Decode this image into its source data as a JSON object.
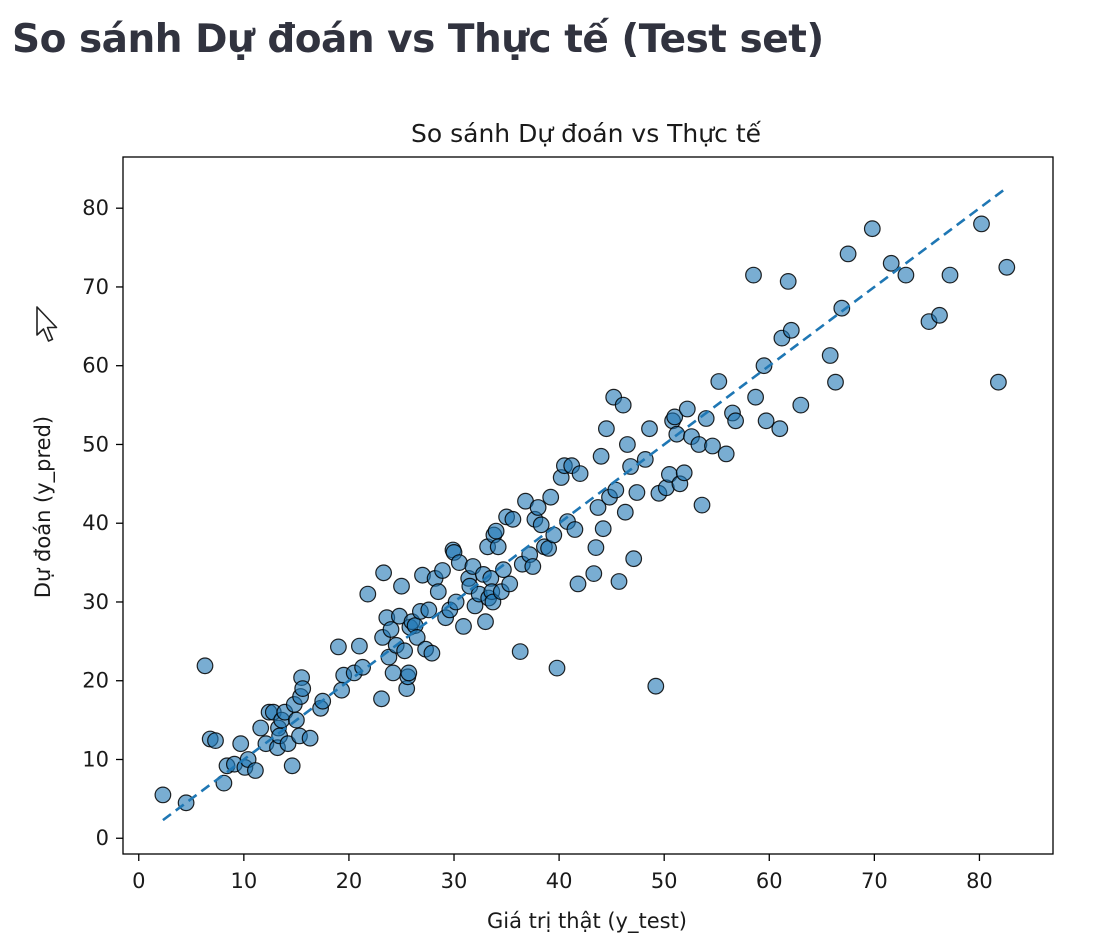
{
  "page": {
    "heading": "So sánh Dự đoán vs Thực tế (Test set)"
  },
  "icons": {
    "cursor": "mouse-pointer-icon"
  },
  "colors": {
    "point_fill": "#1f77b4",
    "point_stroke": "#000000",
    "reference_line": "#1f77b4"
  },
  "chart_data": {
    "type": "scatter",
    "title": "So sánh Dự đoán vs Thực tế",
    "xlabel": "Giá trị thật (y_test)",
    "ylabel": "Dự đoán (y_pred)",
    "xlim": [
      -1.5,
      87
    ],
    "ylim": [
      -2,
      86.5
    ],
    "xticks": [
      0,
      10,
      20,
      30,
      40,
      50,
      60,
      70,
      80
    ],
    "yticks": [
      0,
      10,
      20,
      30,
      40,
      50,
      60,
      70,
      80
    ],
    "grid": false,
    "reference_line": {
      "style": "dashed",
      "from": [
        2.3,
        2.3
      ],
      "to": [
        82.5,
        82.5
      ]
    },
    "points": [
      [
        2.3,
        5.5
      ],
      [
        4.5,
        4.5
      ],
      [
        6.3,
        21.9
      ],
      [
        6.8,
        12.6
      ],
      [
        7.3,
        12.4
      ],
      [
        8.1,
        7
      ],
      [
        8.4,
        9.2
      ],
      [
        9.1,
        9.4
      ],
      [
        9.7,
        12
      ],
      [
        10.1,
        9
      ],
      [
        10.4,
        10
      ],
      [
        11.1,
        8.6
      ],
      [
        11.6,
        14
      ],
      [
        12.1,
        12
      ],
      [
        12.4,
        16
      ],
      [
        12.8,
        16
      ],
      [
        13.2,
        11.5
      ],
      [
        13.3,
        14
      ],
      [
        13.4,
        13
      ],
      [
        13.6,
        15
      ],
      [
        13.9,
        16
      ],
      [
        14.2,
        12
      ],
      [
        14.6,
        9.2
      ],
      [
        14.8,
        17
      ],
      [
        15,
        15
      ],
      [
        15.3,
        13
      ],
      [
        15.4,
        18
      ],
      [
        15.5,
        20.4
      ],
      [
        15.6,
        19
      ],
      [
        16.3,
        12.7
      ],
      [
        17.3,
        16.5
      ],
      [
        17.5,
        17.4
      ],
      [
        19,
        24.3
      ],
      [
        19.3,
        18.8
      ],
      [
        19.5,
        20.7
      ],
      [
        20.5,
        21
      ],
      [
        21,
        24.4
      ],
      [
        21.3,
        21.7
      ],
      [
        21.8,
        31
      ],
      [
        23.1,
        17.7
      ],
      [
        23.2,
        25.5
      ],
      [
        23.3,
        33.7
      ],
      [
        23.6,
        28
      ],
      [
        23.8,
        23
      ],
      [
        24,
        26.5
      ],
      [
        24.2,
        21
      ],
      [
        24.5,
        24.5
      ],
      [
        24.8,
        28.2
      ],
      [
        25,
        32
      ],
      [
        25.3,
        23.8
      ],
      [
        25.5,
        19
      ],
      [
        25.6,
        20.5
      ],
      [
        25.7,
        21
      ],
      [
        25.8,
        26.8
      ],
      [
        26,
        27.5
      ],
      [
        26.3,
        27
      ],
      [
        26.5,
        25.5
      ],
      [
        26.8,
        28.8
      ],
      [
        27,
        33.4
      ],
      [
        27.3,
        24
      ],
      [
        27.6,
        29
      ],
      [
        27.9,
        23.5
      ],
      [
        28.2,
        33
      ],
      [
        28.5,
        31.3
      ],
      [
        28.9,
        34
      ],
      [
        29.2,
        28
      ],
      [
        29.6,
        29
      ],
      [
        29.9,
        36.6
      ],
      [
        30,
        36.3
      ],
      [
        30.2,
        30
      ],
      [
        30.5,
        35
      ],
      [
        30.9,
        26.9
      ],
      [
        31.4,
        33
      ],
      [
        31.5,
        32
      ],
      [
        31.8,
        34.5
      ],
      [
        32,
        29.5
      ],
      [
        32.4,
        31
      ],
      [
        32.8,
        33.5
      ],
      [
        33,
        27.5
      ],
      [
        33.2,
        37
      ],
      [
        33.3,
        30.5
      ],
      [
        33.5,
        33
      ],
      [
        33.6,
        31.3
      ],
      [
        33.7,
        30
      ],
      [
        33.8,
        38.5
      ],
      [
        34,
        39
      ],
      [
        34.2,
        37
      ],
      [
        34.5,
        31.3
      ],
      [
        34.7,
        34.1
      ],
      [
        35,
        40.8
      ],
      [
        35.3,
        32.3
      ],
      [
        35.6,
        40.5
      ],
      [
        36.3,
        23.7
      ],
      [
        36.5,
        34.8
      ],
      [
        36.8,
        42.8
      ],
      [
        37.2,
        36
      ],
      [
        37.5,
        34.5
      ],
      [
        37.7,
        40.5
      ],
      [
        38,
        42
      ],
      [
        38.3,
        39.8
      ],
      [
        38.6,
        37
      ],
      [
        39,
        36.8
      ],
      [
        39.2,
        43.3
      ],
      [
        39.5,
        38.5
      ],
      [
        39.8,
        21.6
      ],
      [
        40.2,
        45.8
      ],
      [
        40.5,
        47.3
      ],
      [
        40.8,
        40.2
      ],
      [
        41.2,
        47.3
      ],
      [
        41.5,
        39.2
      ],
      [
        41.8,
        32.3
      ],
      [
        42,
        46.3
      ],
      [
        43.3,
        33.6
      ],
      [
        43.5,
        36.9
      ],
      [
        43.7,
        42
      ],
      [
        44,
        48.5
      ],
      [
        44.2,
        39.3
      ],
      [
        44.5,
        52
      ],
      [
        44.8,
        43.3
      ],
      [
        45.2,
        56
      ],
      [
        45.4,
        44.2
      ],
      [
        45.7,
        32.6
      ],
      [
        46.1,
        55
      ],
      [
        46.3,
        41.4
      ],
      [
        46.5,
        50
      ],
      [
        46.8,
        47.2
      ],
      [
        47.1,
        35.5
      ],
      [
        47.4,
        43.9
      ],
      [
        48.2,
        48.1
      ],
      [
        48.6,
        52
      ],
      [
        49.2,
        19.3
      ],
      [
        49.5,
        43.8
      ],
      [
        50.2,
        44.5
      ],
      [
        50.5,
        46.2
      ],
      [
        50.8,
        53
      ],
      [
        51,
        53.5
      ],
      [
        51.2,
        51.3
      ],
      [
        51.5,
        45
      ],
      [
        51.9,
        46.4
      ],
      [
        52.2,
        54.5
      ],
      [
        52.6,
        51
      ],
      [
        53.3,
        50
      ],
      [
        53.6,
        42.3
      ],
      [
        54,
        53.3
      ],
      [
        54.6,
        49.8
      ],
      [
        55.2,
        58
      ],
      [
        55.9,
        48.8
      ],
      [
        56.5,
        54
      ],
      [
        56.8,
        53
      ],
      [
        58.5,
        71.5
      ],
      [
        58.7,
        56
      ],
      [
        59.5,
        60
      ],
      [
        59.7,
        53
      ],
      [
        61,
        52
      ],
      [
        61.2,
        63.5
      ],
      [
        61.8,
        70.7
      ],
      [
        62.1,
        64.5
      ],
      [
        63,
        55
      ],
      [
        65.8,
        61.3
      ],
      [
        66.3,
        57.9
      ],
      [
        66.9,
        67.3
      ],
      [
        67.5,
        74.2
      ],
      [
        69.8,
        77.4
      ],
      [
        71.6,
        73
      ],
      [
        73,
        71.5
      ],
      [
        75.2,
        65.6
      ],
      [
        76.2,
        66.4
      ],
      [
        77.2,
        71.5
      ],
      [
        80.2,
        78
      ],
      [
        81.8,
        57.9
      ],
      [
        82.6,
        72.5
      ]
    ]
  }
}
